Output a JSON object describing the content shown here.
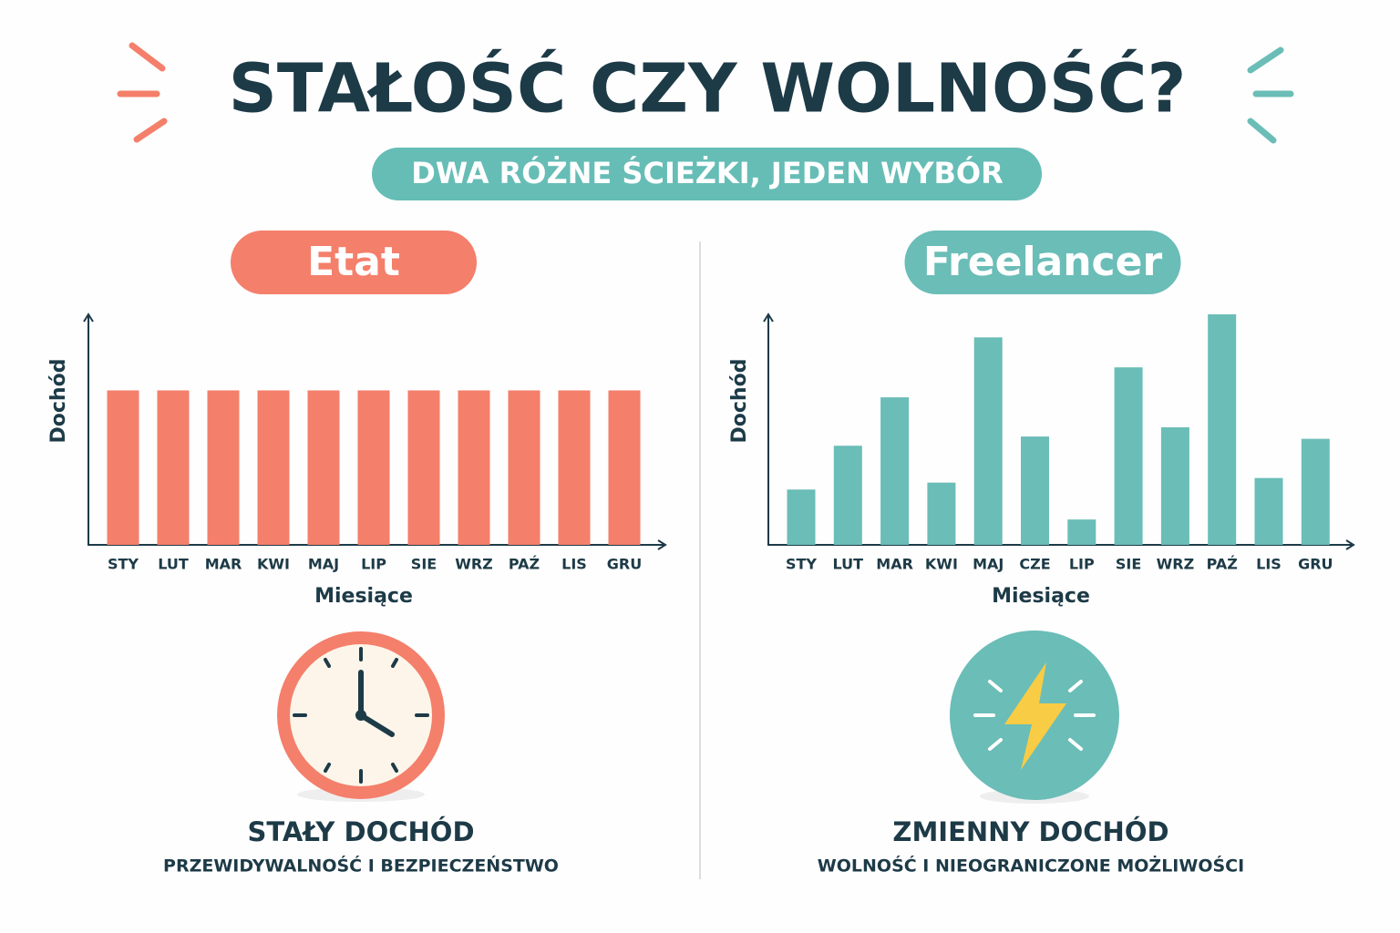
{
  "header": {
    "title": "STAŁOŚĆ CZY WOLNOŚĆ?",
    "subtitle": "DWA RÓŻNE ŚCIEŻKI, JEDEN WYBÓR"
  },
  "chart_data": [
    {
      "type": "bar",
      "title": "Etat",
      "x_label": "Miesiące",
      "y_label": "Dochód",
      "categories": [
        "STY",
        "LUT",
        "MAR",
        "KWI",
        "MAJ",
        "LIP",
        "SIE",
        "WRZ",
        "PAŹ",
        "LIS",
        "GRU"
      ],
      "values": [
        67,
        67,
        67,
        67,
        67,
        67,
        67,
        67,
        67,
        67,
        67
      ],
      "color": "#f47f6b",
      "ylim": [
        0,
        100
      ]
    },
    {
      "type": "bar",
      "title": "Freelancer",
      "x_label": "Miesiące",
      "y_label": "Dochód",
      "categories": [
        "STY",
        "LUT",
        "MAR",
        "KWI",
        "MAJ",
        "CZE",
        "LIP",
        "SIE",
        "WRZ",
        "PAŹ",
        "LIS",
        "GRU"
      ],
      "values": [
        24,
        43,
        64,
        27,
        90,
        47,
        11,
        77,
        51,
        100,
        29,
        46
      ],
      "color": "#6bbdb7",
      "ylim": [
        0,
        100
      ]
    }
  ],
  "captions": [
    {
      "title": "STAŁY DOCHÓD",
      "text": "PRZEWIDYWALNOŚĆ I BEZPIECZEŃSTWO"
    },
    {
      "title": "ZMIENNY DOCHÓD",
      "text": "WOLNOŚĆ I NIEOGRANICZONE MOŻLIWOŚCI"
    }
  ]
}
